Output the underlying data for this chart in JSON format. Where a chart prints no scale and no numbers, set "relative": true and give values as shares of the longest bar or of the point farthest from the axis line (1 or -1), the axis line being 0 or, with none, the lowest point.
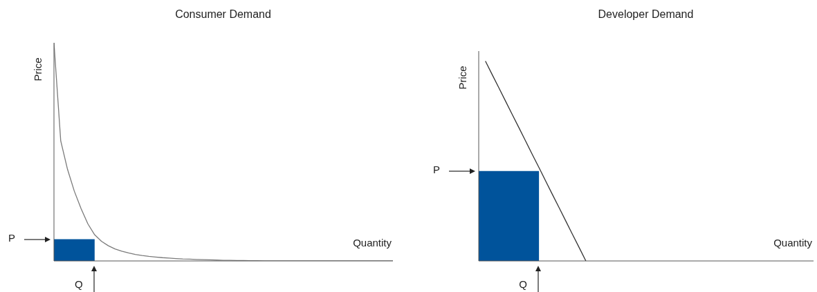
{
  "chart_data": [
    {
      "type": "line",
      "title": "Consumer Demand",
      "xlabel": "Quantity",
      "ylabel": "Price",
      "relative": true,
      "categories": [
        null,
        null,
        null,
        null,
        null,
        null,
        null,
        null,
        null,
        null,
        null,
        null,
        null,
        null,
        null,
        null,
        null,
        null,
        null,
        null,
        null,
        null,
        null,
        null,
        null,
        null,
        null,
        null,
        null,
        null,
        null,
        null,
        null,
        null,
        null,
        null,
        null,
        null,
        null,
        null,
        null,
        null,
        null,
        null,
        null,
        null,
        null,
        null,
        null,
        null,
        null
      ],
      "series": [
        {
          "type": "area",
          "color": "#00539b",
          "values": [
            0.1,
            0.1,
            0.1,
            0.1,
            0.1,
            0.1,
            0.1,
            null,
            null,
            null,
            null,
            null,
            null,
            null,
            null,
            null,
            null,
            null,
            null,
            null,
            null,
            null,
            null,
            null,
            null,
            null,
            null,
            null,
            null,
            null,
            null,
            null,
            null,
            null,
            null,
            null,
            null,
            null,
            null,
            null,
            null,
            null,
            null,
            null,
            null,
            null,
            null,
            null,
            null,
            null,
            null
          ]
        },
        {
          "color": "#7a7a7a",
          "values": [
            1,
            0.55,
            0.42,
            0.32,
            0.24,
            0.17,
            0.12,
            0.09,
            0.07,
            0.055,
            0.045,
            0.037,
            0.03,
            0.025,
            0.021,
            0.018,
            0.015,
            0.013,
            0.011,
            0.009,
            0.008,
            0.007,
            0.006,
            0.005,
            0.004,
            0.003,
            0.003,
            0.002,
            0.002,
            0.001,
            0.001,
            0,
            0,
            0,
            0,
            0,
            0,
            0,
            0,
            0,
            0,
            0,
            0,
            0,
            0,
            0,
            0,
            0,
            0,
            0,
            0
          ]
        }
      ],
      "annotations": [
        "P",
        "Q"
      ]
    },
    {
      "type": "line",
      "title": "Developer Demand",
      "xlabel": "Quantity",
      "ylabel": "Price",
      "relative": true,
      "categories": [
        null,
        null,
        null,
        null,
        null,
        null,
        null,
        null,
        null,
        null,
        null,
        null,
        null,
        null,
        null,
        null,
        null,
        null,
        null,
        null,
        null,
        null,
        null,
        null,
        null,
        null,
        null,
        null,
        null,
        null,
        null,
        null,
        null,
        null,
        null,
        null,
        null,
        null,
        null,
        null,
        null,
        null,
        null,
        null,
        null,
        null,
        null,
        null,
        null,
        null,
        null
      ],
      "series": [
        {
          "type": "area",
          "color": "#00539b",
          "values": [
            0.45,
            0.45,
            0.45,
            0.45,
            0.45,
            0.45,
            0.45,
            0.45,
            0.45,
            0.45,
            null,
            null,
            null,
            null,
            null,
            null,
            null,
            null,
            null,
            null,
            null,
            null,
            null,
            null,
            null,
            null,
            null,
            null,
            null,
            null,
            null,
            null,
            null,
            null,
            null,
            null,
            null,
            null,
            null,
            null,
            null,
            null,
            null,
            null,
            null,
            null,
            null,
            null,
            null,
            null,
            null
          ]
        },
        {
          "color": "#333333",
          "values": [
            null,
            1,
            0.933,
            0.867,
            0.8,
            0.733,
            0.667,
            0.6,
            0.533,
            0.467,
            0.4,
            0.333,
            0.267,
            0.2,
            0.133,
            0.067,
            0,
            null,
            null,
            null,
            null,
            null,
            null,
            null,
            null,
            null,
            null,
            null,
            null,
            null,
            null,
            null,
            null,
            null,
            null,
            null,
            null,
            null,
            null,
            null,
            null,
            null,
            null,
            null,
            null,
            null,
            null,
            null,
            null,
            null,
            null
          ]
        }
      ],
      "annotations": [
        "P",
        "Q"
      ]
    }
  ]
}
